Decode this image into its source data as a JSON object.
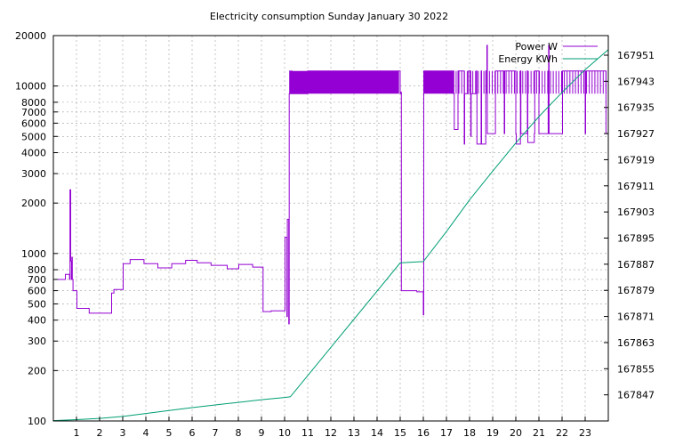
{
  "chart_data": {
    "type": "line",
    "title": "Electricity consumption Sunday January 30 2022",
    "xlabel": "",
    "ylabel": "",
    "y2label": "",
    "xlim": [
      0,
      24
    ],
    "ylim": [
      100,
      20000
    ],
    "y_scale": "log",
    "y2lim": [
      167839,
      167957
    ],
    "grid": true,
    "legend_position": "top-right",
    "x_ticks": [
      1,
      2,
      3,
      4,
      5,
      6,
      7,
      8,
      9,
      10,
      11,
      12,
      13,
      14,
      15,
      16,
      17,
      18,
      19,
      20,
      21,
      22,
      23
    ],
    "y_ticks": [
      {
        "value": 100,
        "label": "100"
      },
      {
        "value": 200,
        "label": "200"
      },
      {
        "value": 300,
        "label": "300"
      },
      {
        "value": 400,
        "label": "400"
      },
      {
        "value": 500,
        "label": "500"
      },
      {
        "value": 600,
        "label": "600"
      },
      {
        "value": 700,
        "label": "700"
      },
      {
        "value": 800,
        "label": "800"
      },
      {
        "value": 1000,
        "label": "1000"
      },
      {
        "value": 2000,
        "label": "2000"
      },
      {
        "value": 3000,
        "label": "3000"
      },
      {
        "value": 4000,
        "label": "4000"
      },
      {
        "value": 5000,
        "label": "5000"
      },
      {
        "value": 6000,
        "label": "6000"
      },
      {
        "value": 7000,
        "label": "7000"
      },
      {
        "value": 8000,
        "label": "8000"
      },
      {
        "value": 10000,
        "label": "10000"
      },
      {
        "value": 20000,
        "label": "20000"
      }
    ],
    "y2_ticks": [
      167847,
      167855,
      167863,
      167871,
      167879,
      167887,
      167895,
      167903,
      167911,
      167919,
      167927,
      167935,
      167943,
      167951
    ],
    "series": [
      {
        "name": "Power W",
        "axis": "y",
        "color": "#9400d3",
        "x": [
          0,
          0.5,
          0.52,
          0.62,
          0.7,
          0.72,
          0.75,
          0.78,
          0.8,
          0.82,
          0.83,
          0.85,
          0.88,
          0.9,
          1.0,
          1.02,
          1.5,
          1.55,
          2.5,
          2.52,
          2.6,
          2.62,
          3.0,
          3.02,
          3.3,
          3.32,
          3.9,
          3.92,
          4.5,
          4.52,
          5.1,
          5.12,
          5.7,
          5.72,
          6.2,
          6.22,
          6.8,
          6.82,
          7.5,
          7.52,
          8.0,
          8.02,
          8.6,
          8.62,
          9.05,
          9.07,
          9.4,
          9.42,
          10.0,
          10.02,
          10.1,
          10.12,
          10.18,
          10.2,
          10.22,
          10.24,
          10.3,
          10.32,
          11.0,
          14.9,
          15.0,
          15.02,
          15.05,
          15.7,
          15.72,
          15.98,
          16.0,
          16.02,
          17.3,
          17.32,
          17.34,
          17.5,
          17.75,
          17.77,
          17.79,
          17.95,
          18.05,
          18.07,
          18.3,
          18.32,
          18.5,
          18.52,
          18.7,
          18.75,
          18.77,
          19.1,
          19.12,
          19.5,
          19.52,
          20.0,
          20.02,
          20.2,
          20.22,
          20.5,
          20.52,
          20.8,
          20.82,
          21.0,
          21.4,
          21.42,
          21.44,
          22.0,
          22.02,
          23.0,
          23.02,
          23.9
        ],
        "values": [
          700,
          700,
          750,
          750,
          700,
          2400,
          900,
          700,
          950,
          700,
          700,
          600,
          600,
          600,
          600,
          470,
          470,
          440,
          440,
          580,
          580,
          610,
          610,
          870,
          870,
          920,
          920,
          870,
          870,
          820,
          820,
          870,
          870,
          910,
          910,
          880,
          880,
          850,
          850,
          810,
          810,
          860,
          860,
          830,
          830,
          450,
          450,
          455,
          455,
          1250,
          420,
          1600,
          380,
          9000,
          12300,
          9000,
          12300,
          9000,
          12300,
          12300,
          9000,
          9200,
          600,
          600,
          590,
          590,
          430,
          12300,
          12300,
          9000,
          5500,
          12300,
          12300,
          4500,
          9000,
          12300,
          5000,
          9000,
          12300,
          4500,
          12300,
          4500,
          12300,
          17500,
          5200,
          5200,
          12300,
          5200,
          12300,
          5200,
          4500,
          12300,
          5200,
          12300,
          4600,
          5200,
          12300,
          5200,
          12300,
          17500,
          5200,
          5200,
          12300,
          5200,
          12300,
          5200
        ]
      },
      {
        "name": "Energy KWh",
        "axis": "y2",
        "color": "#009e73",
        "x": [
          0,
          1,
          2,
          3,
          4,
          5,
          6,
          7,
          8,
          9,
          10,
          10.25,
          15,
          16,
          17,
          18,
          19,
          20,
          21,
          22,
          23,
          24
        ],
        "values": [
          167839.1,
          167839.4,
          167839.8,
          167840.4,
          167841.3,
          167842.2,
          167843.1,
          167843.9,
          167844.7,
          167845.5,
          167846.2,
          167846.4,
          167887.4,
          167887.8,
          167897.0,
          167906.7,
          167915.5,
          167924.1,
          167932.2,
          167939.6,
          167946.6,
          167952.7
        ]
      }
    ]
  }
}
